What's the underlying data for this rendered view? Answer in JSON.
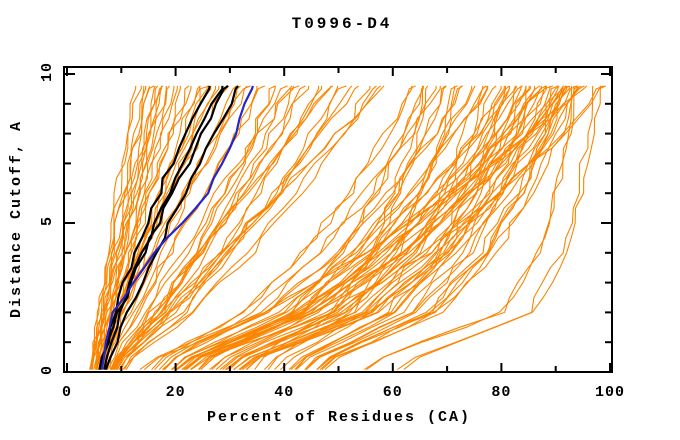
{
  "figure": {
    "background": "#FFFFFF",
    "frame_color": "#000000",
    "text_color": "#000000"
  },
  "chart_data": {
    "type": "line",
    "title": "T0996-D4",
    "xlabel": "Percent of Residues (CA)",
    "ylabel": "Distance Cutoff, A",
    "xlim": [
      0,
      100
    ],
    "ylim": [
      0,
      10
    ],
    "x_major_ticks": [
      0,
      20,
      40,
      60,
      80,
      100
    ],
    "x_minor_tick_step": 10,
    "y_major_ticks": [
      0,
      5,
      10
    ],
    "y_minor_tick_step": 1,
    "grid": false,
    "legend": "none",
    "cutoffs": [
      0.3,
      2,
      4,
      6,
      8,
      9.6
    ],
    "series": {
      "models": {
        "color": "#FB8500",
        "line_width": 1.1,
        "curves": [
          [
            5.1,
            6.2,
            7.8,
            9.6,
            11.5,
            13
          ],
          [
            5.3,
            7,
            9,
            11,
            13,
            14.5
          ],
          [
            5.7,
            7,
            9.1,
            11.3,
            13.6,
            15.5
          ],
          [
            6.3,
            8.2,
            10.4,
            12.6,
            14.8,
            16.5
          ],
          [
            5.2,
            6.9,
            9.4,
            12.2,
            15.2,
            17.5
          ],
          [
            6.4,
            8.6,
            11.3,
            13.9,
            16.5,
            18.5
          ],
          [
            5.7,
            7.7,
            10.6,
            13.9,
            17.3,
            20
          ],
          [
            7,
            9.5,
            12.6,
            15.6,
            18.7,
            21
          ],
          [
            5.3,
            7.7,
            11.2,
            15.1,
            19.2,
            22.5
          ],
          [
            6.6,
            9.8,
            13.6,
            17.3,
            21.1,
            24
          ],
          [
            6.8,
            9.4,
            13.2,
            17.5,
            22,
            25.5
          ],
          [
            6.2,
            10,
            14.5,
            19,
            23.6,
            27
          ],
          [
            6.4,
            9.5,
            14.2,
            19.3,
            24.7,
            29
          ],
          [
            7.3,
            11.6,
            16.8,
            21.9,
            27.1,
            31
          ],
          [
            5.9,
            9.7,
            15.3,
            21.4,
            27.9,
            33
          ],
          [
            7.9,
            13.1,
            19.2,
            25.3,
            31.4,
            36
          ],
          [
            8.8,
            16.7,
            23.5,
            29.2,
            34.4,
            38
          ],
          [
            8.1,
            13.9,
            20.9,
            27.8,
            34.7,
            40
          ],
          [
            9.2,
            18.1,
            25.7,
            32.1,
            37.9,
            42
          ],
          [
            9,
            16.8,
            24.7,
            32,
            39,
            44
          ],
          [
            9.6,
            19.4,
            27.8,
            35,
            41.5,
            46
          ],
          [
            8.3,
            15.6,
            24.2,
            32.8,
            41.4,
            48
          ],
          [
            9.9,
            20.7,
            30,
            37.9,
            45,
            50
          ],
          [
            9.4,
            19.2,
            29,
            38.1,
            46.7,
            53
          ],
          [
            10.5,
            22.8,
            33.3,
            42.3,
            50.4,
            56
          ],
          [
            8.6,
            17.7,
            28.4,
            39.1,
            49.8,
            58
          ],
          [
            16.3,
            32.6,
            43.6,
            52.1,
            59.2,
            64
          ],
          [
            24.4,
            40.9,
            50.2,
            56.8,
            62.1,
            65.5
          ],
          [
            34.5,
            49.2,
            56.4,
            61.1,
            64.7,
            67
          ],
          [
            17.9,
            35.2,
            46.9,
            55.9,
            63.5,
            68.5
          ],
          [
            25.1,
            43.1,
            53.3,
            60.5,
            66.3,
            70
          ],
          [
            37.1,
            52.7,
            60.3,
            65.3,
            69.1,
            71.5
          ],
          [
            17.9,
            36.7,
            49.5,
            59.3,
            67.5,
            73
          ],
          [
            27.1,
            46.1,
            56.9,
            64.5,
            70.6,
            74.5
          ],
          [
            38.7,
            55.6,
            63.9,
            69.3,
            73.4,
            76
          ],
          [
            19.5,
            39.3,
            52.8,
            63.1,
            71.7,
            77.5
          ],
          [
            27.8,
            48.3,
            59.9,
            68.2,
            74.8,
            79
          ],
          [
            41.1,
            58.8,
            67.4,
            73,
            77.3,
            80
          ],
          [
            19.4,
            40.4,
            54.7,
            65.6,
            74.9,
            81
          ],
          [
            29.4,
            50.4,
            62.4,
            70.9,
            77.7,
            82
          ],
          [
            42,
            60.6,
            69.7,
            75.6,
            80.2,
            83
          ],
          [
            20.7,
            42.3,
            57,
            68.2,
            77.7,
            84
          ],
          [
            29.5,
            51.7,
            64.4,
            73.3,
            80.4,
            85
          ],
          [
            43.9,
            63,
            72.3,
            78.4,
            83.1,
            86
          ],
          [
            20.4,
            43.1,
            58.6,
            70.4,
            80.4,
            87
          ],
          [
            31.1,
            53.9,
            66.9,
            76,
            83.3,
            88
          ],
          [
            44.5,
            64.5,
            74.2,
            80.6,
            85.4,
            88.5
          ],
          [
            21.6,
            44.6,
            60.2,
            72.2,
            82.3,
            89
          ],
          [
            31,
            54.6,
            68.1,
            77.6,
            85.1,
            90
          ],
          [
            46,
            66.2,
            76.1,
            82.5,
            87.4,
            90.5
          ],
          [
            21.1,
            44.9,
            61.2,
            73.6,
            84,
            91
          ],
          [
            32.2,
            55.9,
            69.4,
            79,
            86.6,
            91.5
          ],
          [
            46.2,
            67,
            77.1,
            83.7,
            88.8,
            92
          ],
          [
            22.2,
            46.2,
            62.5,
            75,
            85.5,
            92.5
          ],
          [
            32.1,
            56.7,
            70.7,
            80.6,
            88.4,
            93.5
          ],
          [
            47.6,
            68.7,
            78.9,
            85.6,
            90.8,
            94
          ],
          [
            62,
            86,
            92,
            94.5,
            96.5,
            98
          ],
          [
            55,
            80,
            87,
            90,
            92,
            93
          ],
          [
            13.9,
            35.8,
            54.6,
            70.5,
            84.9,
            95
          ],
          [
            23.4,
            49.1,
            66.7,
            80.1,
            91.4,
            99
          ]
        ]
      },
      "reference": {
        "color": "#000000",
        "line_width": 2.2,
        "curves": [
          [
            6.3,
            8.8,
            12.6,
            16.9,
            21.6,
            26
          ],
          [
            6.9,
            9.8,
            13.9,
            18.6,
            23.6,
            28.5
          ],
          [
            6.4,
            9.5,
            14.2,
            19.5,
            25.1,
            29.5
          ],
          [
            7.5,
            11.2,
            16.3,
            21.6,
            27.2,
            31.5
          ]
        ]
      },
      "highlight": {
        "color": "#2525C8",
        "line_width": 2.2,
        "curves": [
          [
            6.5,
            8.5,
            16,
            26,
            31,
            34
          ]
        ]
      }
    }
  }
}
